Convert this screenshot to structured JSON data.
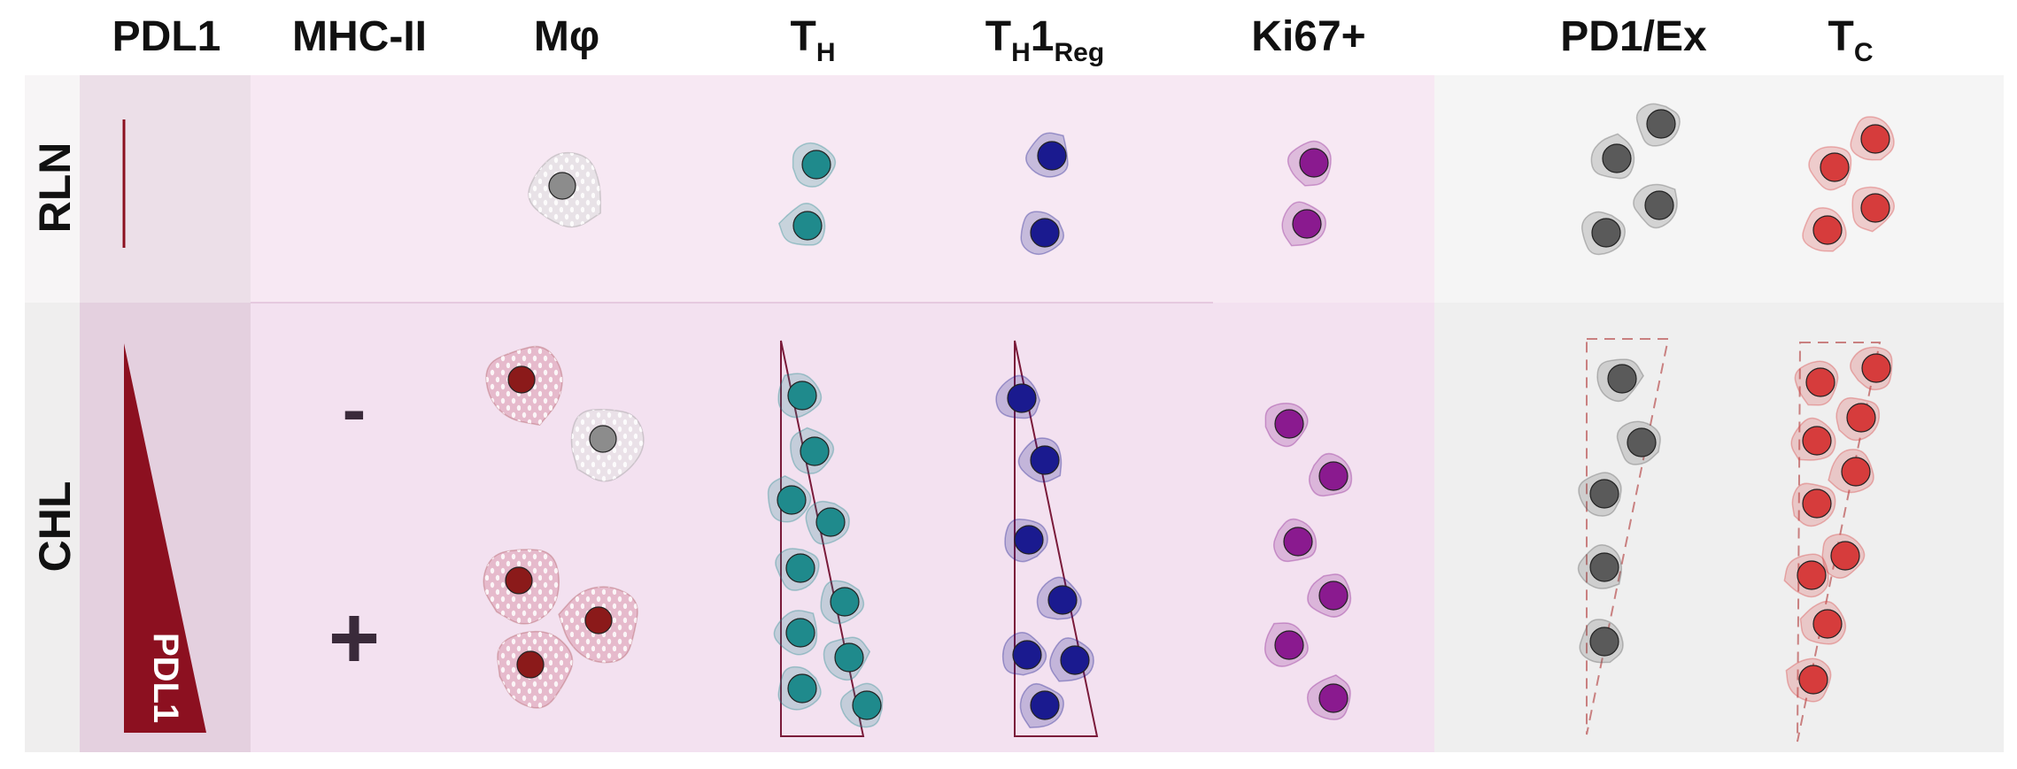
{
  "columns": {
    "pdl1": "PDL1",
    "mhcii": "MHC-II",
    "macrophage": "Mφ",
    "th_main": "T",
    "th_sub": "H",
    "th1reg_main": "T",
    "th1reg_sub1": "H",
    "th1reg_mid": "1",
    "th1reg_sub2": "Reg",
    "ki67": "Ki67+",
    "pd1ex": "PD1/Ex",
    "tc_main": "T",
    "tc_sub": "C"
  },
  "rows": {
    "rln": "RLN",
    "chl": "CHL"
  },
  "mhcii_levels": {
    "negative": "-",
    "positive": "+"
  },
  "triangle_label": "PDL1",
  "colors": {
    "th_cell": "#1f8a8c",
    "th1reg_cell": "#1a1a8f",
    "ki67_cell": "#8a1a8f",
    "pd1ex_cell": "#5a5a5a",
    "tc_cell": "#d63c3c",
    "macrophage_pos": "#8b1a1a",
    "macrophage_neg": "#8c8c8c",
    "pdl1_triangle": "#8c1020"
  },
  "icons": {
    "th": "th-cell-icon",
    "th1reg": "th1reg-cell-icon",
    "ki67": "ki67-cell-icon",
    "pd1ex": "pd1-exhausted-cell-icon",
    "tc": "cytotoxic-t-cell-icon",
    "macrophage": "macrophage-icon"
  }
}
